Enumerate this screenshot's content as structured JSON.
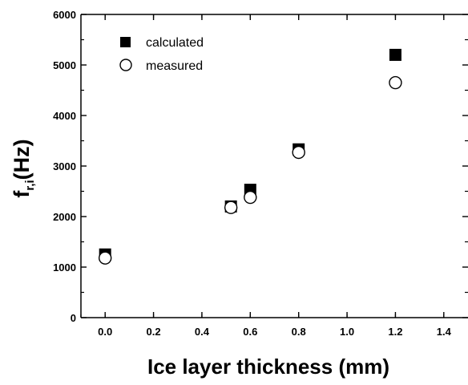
{
  "chart_data": {
    "type": "scatter",
    "title": "",
    "xlabel": "Ice layer thickness (mm)",
    "ylabel_main": "f",
    "ylabel_sub": "r,i",
    "ylabel_unit": "(Hz)",
    "xlim": [
      -0.1,
      1.5
    ],
    "ylim": [
      0,
      6000
    ],
    "xticks": [
      "0.0",
      "0.2",
      "0.4",
      "0.6",
      "0.8",
      "1.0",
      "1.2",
      "1.4"
    ],
    "yticks": [
      "0",
      "1000",
      "2000",
      "3000",
      "4000",
      "5000",
      "6000"
    ],
    "legend_position": "top-left",
    "grid": false,
    "series": [
      {
        "name": "calculated",
        "marker": "filled-square",
        "color": "#000000",
        "x": [
          0.0,
          0.52,
          0.6,
          0.8,
          1.2
        ],
        "y": [
          1250,
          2200,
          2530,
          3330,
          5200
        ]
      },
      {
        "name": "measured",
        "marker": "open-circle",
        "color": "#000000",
        "x": [
          0.0,
          0.52,
          0.6,
          0.8,
          1.2
        ],
        "y": [
          1180,
          2180,
          2380,
          3270,
          4650
        ]
      }
    ]
  }
}
